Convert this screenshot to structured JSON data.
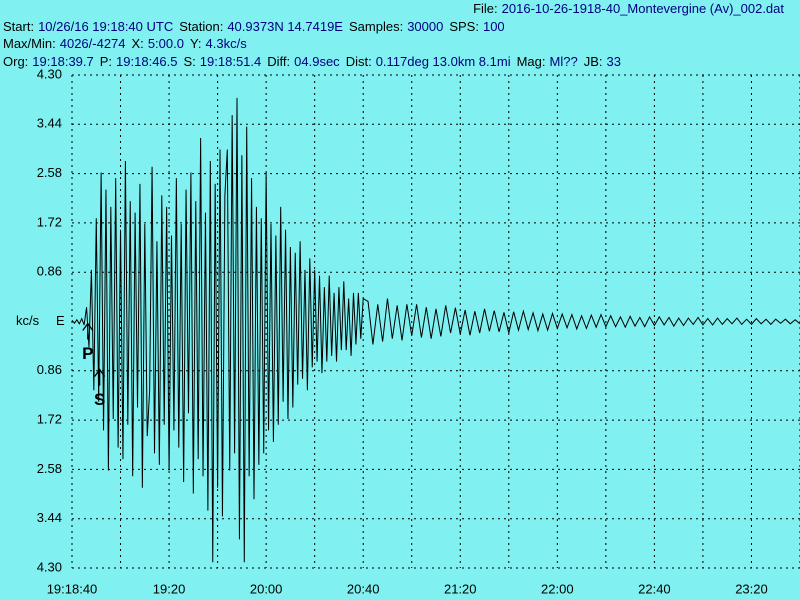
{
  "header": {
    "lines": [
      [
        {
          "label": "File:",
          "value": "2016-10-26-1918-40_Montevergine (Av)_002.dat"
        }
      ],
      [
        {
          "label": "Start:",
          "value": "10/26/16 19:18:40 UTC"
        },
        {
          "label": "Station:",
          "value": "40.9373N 14.7419E"
        },
        {
          "label": "Samples:",
          "value": "30000"
        },
        {
          "label": "SPS:",
          "value": "100"
        }
      ],
      [
        {
          "label": "Max/Min:",
          "value": "4026/-4274"
        },
        {
          "label": "X:",
          "value": "5:00.0"
        },
        {
          "label": "Y:",
          "value": "4.3kc/s"
        }
      ],
      [
        {
          "label": "Org:",
          "value": "19:18:39.7"
        },
        {
          "label": "P:",
          "value": "19:18:46.5"
        },
        {
          "label": "S:",
          "value": "19:18:51.4"
        },
        {
          "label": "Diff:",
          "value": "04.9sec"
        },
        {
          "label": "Dist:",
          "value": "0.117deg 13.0km 8.1mi"
        },
        {
          "label": "Mag:",
          "value": "Ml??"
        },
        {
          "label": "JB:",
          "value": "33"
        }
      ]
    ]
  },
  "chart_data": {
    "type": "line",
    "ylabel": "kc/s",
    "channel": "E",
    "xlim": [
      0,
      300
    ],
    "ylim": [
      -4.3,
      4.3
    ],
    "xticks": [
      {
        "value": 0,
        "label": "19:18:40"
      },
      {
        "value": 40,
        "label": "19:20"
      },
      {
        "value": 80,
        "label": "20:00"
      },
      {
        "value": 120,
        "label": "20:40"
      },
      {
        "value": 160,
        "label": "21:20"
      },
      {
        "value": 200,
        "label": "22:00"
      },
      {
        "value": 240,
        "label": "22:40"
      },
      {
        "value": 280,
        "label": "23:20"
      }
    ],
    "xminor": [
      20,
      60,
      100,
      140,
      180,
      220,
      260,
      300
    ],
    "yticks": [
      {
        "value": 4.3,
        "label": "4.30"
      },
      {
        "value": 3.44,
        "label": "3.44"
      },
      {
        "value": 2.58,
        "label": "2.58"
      },
      {
        "value": 1.72,
        "label": "1.72"
      },
      {
        "value": 0.86,
        "label": "0.86"
      },
      {
        "value": -0.86,
        "label": "0.86"
      },
      {
        "value": -1.72,
        "label": "1.72"
      },
      {
        "value": -2.58,
        "label": "2.58"
      },
      {
        "value": -3.44,
        "label": "3.44"
      },
      {
        "value": -4.3,
        "label": "4.30"
      }
    ],
    "grid": true,
    "picks": [
      {
        "label": "P",
        "x": 6.5
      },
      {
        "label": "S",
        "x": 11.4
      }
    ],
    "series": [
      {
        "color": "#000000",
        "x": [
          0,
          1,
          2,
          3,
          4,
          5,
          6,
          7,
          8,
          9,
          10,
          11,
          12,
          13,
          14,
          15,
          16,
          17,
          18,
          19,
          20,
          21,
          22,
          23,
          24,
          25,
          26,
          27,
          28,
          29,
          30,
          31,
          32,
          33,
          34,
          35,
          36,
          37,
          38,
          39,
          40,
          41,
          42,
          43,
          44,
          45,
          46,
          47,
          48,
          49,
          50,
          51,
          52,
          53,
          54,
          55,
          56,
          57,
          58,
          59,
          60,
          61,
          62,
          63,
          64,
          65,
          66,
          67,
          68,
          69,
          70,
          71,
          72,
          73,
          74,
          75,
          76,
          77,
          78,
          79,
          80,
          81,
          82,
          83,
          84,
          85,
          86,
          87,
          88,
          89,
          90,
          91,
          92,
          93,
          94,
          95,
          96,
          97,
          98,
          99,
          100,
          101,
          102,
          103,
          104,
          105,
          106,
          107,
          108,
          109,
          110,
          111,
          112,
          113,
          114,
          115,
          116,
          117,
          118,
          119,
          120,
          122,
          124,
          126,
          128,
          130,
          132,
          134,
          136,
          138,
          140,
          142,
          144,
          146,
          148,
          150,
          152,
          154,
          156,
          158,
          160,
          162,
          164,
          166,
          168,
          170,
          172,
          174,
          176,
          178,
          180,
          182,
          184,
          186,
          188,
          190,
          192,
          194,
          196,
          198,
          200,
          202,
          204,
          206,
          208,
          210,
          212,
          214,
          216,
          218,
          220,
          222,
          224,
          226,
          228,
          230,
          232,
          234,
          236,
          238,
          240,
          242,
          244,
          246,
          248,
          250,
          252,
          254,
          256,
          258,
          260,
          262,
          264,
          266,
          268,
          270,
          272,
          274,
          276,
          278,
          280,
          282,
          284,
          286,
          288,
          290,
          292,
          294,
          296,
          298,
          300
        ],
        "values": [
          0.02,
          -0.03,
          0.03,
          -0.04,
          0.05,
          -0.06,
          0.25,
          -0.45,
          0.9,
          -1.2,
          1.8,
          -1.4,
          2.6,
          -1.9,
          2.3,
          -2.6,
          2.0,
          -1.7,
          2.5,
          -2.2,
          1.6,
          -2.4,
          2.8,
          -1.8,
          2.1,
          -2.7,
          1.9,
          -1.5,
          2.4,
          -2.9,
          1.7,
          -2.0,
          -1.2,
          2.7,
          -2.3,
          1.4,
          -2.5,
          2.2,
          -1.8,
          2.0,
          -2.6,
          1.5,
          -1.9,
          2.5,
          -2.2,
          1.7,
          -2.8,
          2.3,
          -1.6,
          2.6,
          -3.0,
          2.1,
          -2.4,
          3.2,
          -2.7,
          1.9,
          -3.3,
          2.8,
          -4.2,
          2.4,
          -2.9,
          3.0,
          -3.4,
          2.2,
          3.0,
          -2.6,
          3.6,
          -2.3,
          3.9,
          -3.8,
          2.9,
          -4.2,
          3.4,
          -2.7,
          2.5,
          -3.1,
          2.0,
          -2.5,
          1.8,
          -2.3,
          2.6,
          -1.9,
          1.7,
          -2.1,
          1.5,
          -1.8,
          2.0,
          -1.4,
          1.6,
          -1.7,
          1.3,
          -1.5,
          1.2,
          -1.1,
          1.4,
          -1.0,
          0.9,
          -1.2,
          1.1,
          -0.8,
          0.9,
          -0.7,
          0.8,
          -0.9,
          0.6,
          -0.7,
          0.8,
          -0.6,
          0.5,
          -0.7,
          0.6,
          -0.5,
          0.7,
          -0.5,
          0.4,
          -0.6,
          0.5,
          -0.4,
          0.5,
          -0.3,
          0.4,
          0.35,
          -0.4,
          0.3,
          -0.35,
          0.4,
          -0.3,
          0.28,
          -0.33,
          0.3,
          -0.25,
          0.3,
          -0.28,
          0.25,
          -0.3,
          0.22,
          -0.26,
          0.28,
          -0.2,
          0.24,
          -0.22,
          0.2,
          -0.24,
          0.18,
          -0.2,
          0.22,
          -0.17,
          0.19,
          -0.18,
          0.16,
          -0.2,
          0.17,
          -0.15,
          0.18,
          -0.14,
          0.15,
          -0.16,
          0.13,
          -0.15,
          0.14,
          -0.12,
          0.13,
          -0.11,
          0.12,
          -0.13,
          0.1,
          -0.12,
          0.11,
          -0.1,
          0.12,
          -0.09,
          0.1,
          -0.09,
          0.08,
          -0.1,
          0.09,
          -0.08,
          0.07,
          -0.09,
          0.08,
          -0.07,
          0.08,
          -0.06,
          0.07,
          -0.08,
          0.06,
          -0.07,
          0.06,
          -0.05,
          0.07,
          -0.06,
          0.05,
          -0.06,
          0.06,
          -0.05,
          0.05,
          -0.04,
          0.06,
          -0.05,
          0.04,
          -0.05,
          0.05,
          -0.04,
          0.04,
          -0.05,
          0.04,
          -0.03,
          0.04,
          -0.04,
          0.03,
          -0.04
        ]
      }
    ]
  }
}
